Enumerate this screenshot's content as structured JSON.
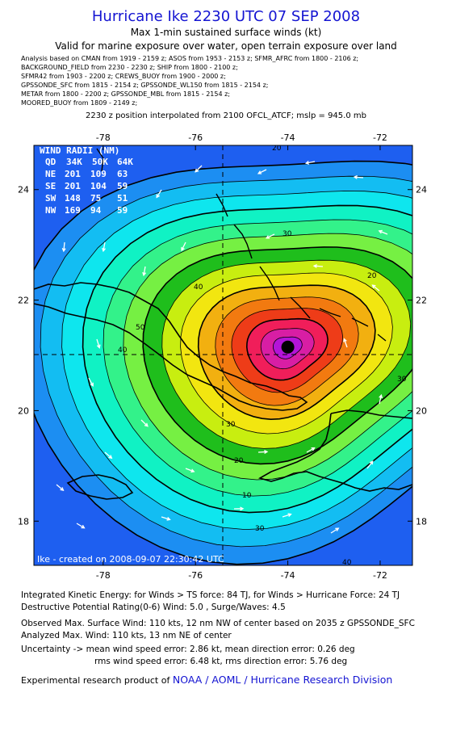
{
  "header": {
    "title": "Hurricane Ike 2230 UTC 07 SEP 2008",
    "subtitle_1": "Max 1-min sustained surface winds (kt)",
    "subtitle_2": "Valid for marine exposure over water, open terrain exposure over land",
    "analysis_lines": [
      "Analysis based on  CMAN from 1919 - 2159 z;  ASOS from 1953 - 2153 z;  SFMR_AFRC from 1800 - 2106 z;",
      "BACKGROUND_FIELD from 2230 - 2230 z;  SHIP from 1800 - 2100 z;",
      "SFMR42 from 1903 - 2200 z;  CREWS_BUOY from 1900 - 2000 z;",
      "GPSSONDE_SFC from 1815 - 2154 z;  GPSSONDE_WL150 from 1815 - 2154 z;",
      "METAR from 1800 - 2200 z;  GPSSONDE_MBL from 1815 - 2154 z;",
      "MOORED_BUOY from 1809 - 2149 z;"
    ],
    "position_note": "2230 z position interpolated from 2100 OFCL_ATCF; mslp = 945.0 mb"
  },
  "chart_data": {
    "type": "heatmap",
    "x_ticks": [
      "-78",
      "-76",
      "-74",
      "-72"
    ],
    "y_ticks": [
      "24",
      "22",
      "20",
      "18"
    ],
    "xlim": [
      -79.5,
      -71.3
    ],
    "ylim": [
      17.2,
      24.8
    ],
    "center": {
      "lon": -74.0,
      "lat": 21.15
    },
    "contour_labels": [
      "20",
      "30",
      "40",
      "50",
      "40",
      "30",
      "20",
      "10",
      "30",
      "40",
      "30",
      "20"
    ],
    "wind_radii": {
      "title": "WIND RADII (NM)",
      "header": [
        "QD",
        "34K",
        "50K",
        "64K"
      ],
      "rows": [
        [
          "NE",
          "201",
          "109",
          "63"
        ],
        [
          "SE",
          "201",
          "104",
          "59"
        ],
        [
          "SW",
          "148",
          "75",
          "51"
        ],
        [
          "NW",
          "169",
          "94",
          "59"
        ]
      ]
    },
    "created_label": "Ike - created on 2008-09-07 22:30:42 UTC",
    "palette": [
      "#1e5ff0",
      "#1c8ef2",
      "#13bdf2",
      "#0ee6ee",
      "#10f2c4",
      "#33f28a",
      "#76f043",
      "#1fbe1c",
      "#c8ee10",
      "#f2e610",
      "#f2b010",
      "#f27a10",
      "#ee3c18",
      "#f01e5a",
      "#d81ea4",
      "#b414d8"
    ]
  },
  "footer": {
    "ike_line": "Integrated Kinetic Energy:  for Winds > TS force: 84 TJ,  for Winds > Hurricane Force: 24 TJ",
    "dpr_line": "Destructive Potential Rating(0-6)   Wind: 5.0 , Surge/Waves: 4.5",
    "obs_line": "Observed Max. Surface Wind: 110 kts, 12 nm NW of center based on 2035 z GPSSONDE_SFC",
    "analyzed_line": "Analyzed Max. Wind: 110 kts, 13 nm NE of center",
    "uncert_line_1": "Uncertainty -> mean wind speed error: 2.86 kt,   mean direction error: 0.26 deg",
    "uncert_line_2": "rms wind speed error: 6.48 kt,   rms direction error: 5.76 deg",
    "credit_prefix": "Experimental research product of ",
    "credit_org": "NOAA / AOML / Hurricane Research Division"
  }
}
